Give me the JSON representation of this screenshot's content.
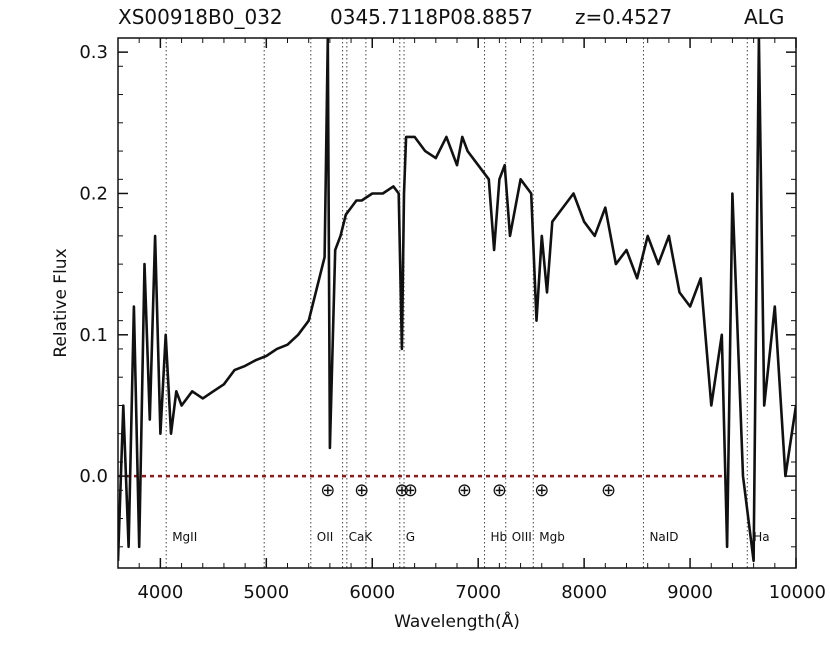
{
  "chart_data": {
    "type": "line",
    "title_left": "XS00918B0_032",
    "title_mid": "0345.7118P08.8857",
    "title_z": "z=0.4527",
    "title_right": "ALG",
    "xlabel": "Wavelength(Å)",
    "ylabel": "Relative Flux",
    "xlim": [
      3600,
      10000
    ],
    "ylim": [
      -0.065,
      0.31
    ],
    "x_ticks": [
      4000,
      5000,
      6000,
      7000,
      8000,
      9000,
      10000
    ],
    "x_tick_labels": [
      "4000",
      "5000",
      "6000",
      "7000",
      "8000",
      "9000",
      "10000"
    ],
    "y_ticks": [
      0.0,
      0.1,
      0.2,
      0.3
    ],
    "y_tick_labels": [
      "0.0",
      "0.1",
      "0.2",
      "0.3"
    ],
    "spectrum": {
      "x": [
        3600,
        3650,
        3700,
        3750,
        3800,
        3850,
        3900,
        3950,
        4000,
        4050,
        4100,
        4150,
        4200,
        4300,
        4400,
        4500,
        4600,
        4700,
        4800,
        4900,
        5000,
        5100,
        5200,
        5300,
        5400,
        5450,
        5500,
        5550,
        5580,
        5600,
        5650,
        5700,
        5750,
        5800,
        5850,
        5900,
        6000,
        6100,
        6200,
        6250,
        6280,
        6300,
        6320,
        6400,
        6500,
        6600,
        6700,
        6800,
        6850,
        6900,
        7000,
        7100,
        7150,
        7200,
        7250,
        7300,
        7400,
        7500,
        7550,
        7600,
        7650,
        7700,
        7800,
        7900,
        8000,
        8100,
        8200,
        8300,
        8400,
        8500,
        8600,
        8700,
        8800,
        8900,
        9000,
        9100,
        9200,
        9300,
        9350,
        9400,
        9500,
        9600,
        9650,
        9700,
        9800,
        9900,
        10000
      ],
      "y": [
        -0.06,
        0.05,
        -0.05,
        0.12,
        -0.05,
        0.15,
        0.04,
        0.17,
        0.03,
        0.1,
        0.03,
        0.06,
        0.05,
        0.06,
        0.055,
        0.06,
        0.065,
        0.075,
        0.078,
        0.082,
        0.085,
        0.09,
        0.093,
        0.1,
        0.11,
        0.125,
        0.14,
        0.155,
        0.31,
        0.02,
        0.16,
        0.17,
        0.185,
        0.19,
        0.195,
        0.195,
        0.2,
        0.2,
        0.205,
        0.2,
        0.09,
        0.2,
        0.24,
        0.24,
        0.23,
        0.225,
        0.24,
        0.22,
        0.24,
        0.23,
        0.22,
        0.21,
        0.16,
        0.21,
        0.22,
        0.17,
        0.21,
        0.2,
        0.11,
        0.17,
        0.13,
        0.18,
        0.19,
        0.2,
        0.18,
        0.17,
        0.19,
        0.15,
        0.16,
        0.14,
        0.17,
        0.15,
        0.17,
        0.13,
        0.12,
        0.14,
        0.05,
        0.1,
        -0.05,
        0.2,
        0.0,
        -0.06,
        0.31,
        0.05,
        0.12,
        0.0,
        0.05
      ]
    },
    "zero_line": {
      "x": [
        3600,
        9300
      ],
      "y": 0.0,
      "color": "#8b1a1a",
      "style": "dotted"
    },
    "spectral_lines": [
      {
        "x": 4055,
        "label": "MgII"
      },
      {
        "x": 4980,
        "label": ""
      },
      {
        "x": 5420,
        "label": "OII"
      },
      {
        "x": 5720,
        "label": "CaK"
      },
      {
        "x": 5760,
        "label": ""
      },
      {
        "x": 5940,
        "label": ""
      },
      {
        "x": 6260,
        "label": "G"
      },
      {
        "x": 6300,
        "label": ""
      },
      {
        "x": 7060,
        "label": "Hb"
      },
      {
        "x": 7260,
        "label": "OIII"
      },
      {
        "x": 7520,
        "label": "Mgb"
      },
      {
        "x": 8560,
        "label": "NaID"
      },
      {
        "x": 9540,
        "label": "Ha"
      }
    ],
    "telluric_markers": {
      "x": [
        5580,
        5900,
        6280,
        6360,
        6870,
        7200,
        7600,
        8230
      ],
      "y": -0.009,
      "symbol": "⊕"
    },
    "grid": false,
    "line_color": "#111111"
  }
}
